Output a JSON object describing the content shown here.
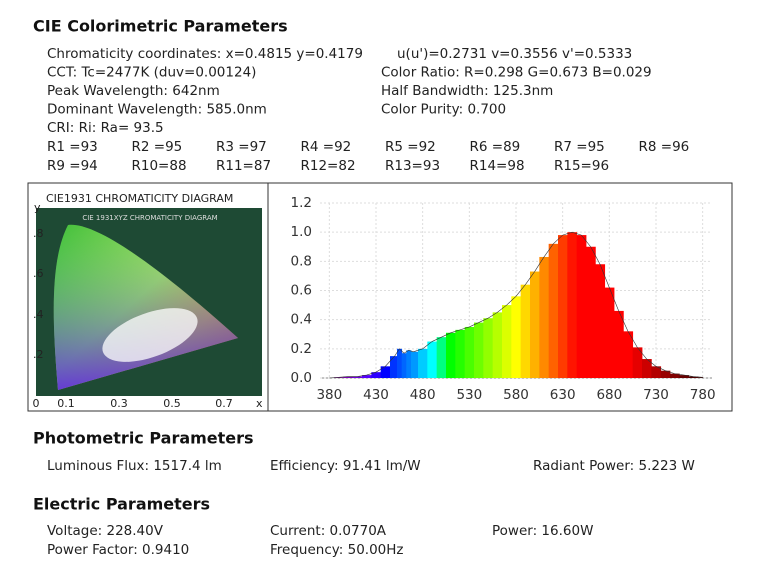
{
  "colorimetric": {
    "title": "CIE Colorimetric Parameters",
    "rows": [
      [
        "Chromaticity coordinates: x=0.4815 y=0.4179",
        "u(u')=0.2731 v=0.3556 v'=0.5333"
      ],
      [
        "CCT: Tc=2477K (duv=0.00124)",
        "Color Ratio: R=0.298  G=0.673  B=0.029"
      ],
      [
        "Peak Wavelength: 642nm",
        "Half Bandwidth: 125.3nm"
      ],
      [
        "Dominant Wavelength: 585.0nm",
        "Color Purity: 0.700"
      ],
      [
        "CRI: Ri: Ra= 93.5"
      ]
    ],
    "cri": [
      [
        "R1 =93",
        "R2 =95",
        "R3 =97",
        "R4 =92",
        "R5 =92",
        "R6 =89",
        "R7 =95",
        "R8 =96"
      ],
      [
        "R9 =94",
        "R10=88",
        "R11=87",
        "R12=82",
        "R13=93",
        "R14=98",
        "R15=96"
      ]
    ]
  },
  "cie_diagram": {
    "title": "CIE1931 CHROMATICITY DIAGRAM",
    "inner_title": "CIE 1931XYZ CHROMATICITY DIAGRAM",
    "y_label": "y",
    "x_label": "x",
    "y_ticks": [
      ".8",
      ".6",
      ".4",
      ".2"
    ],
    "x_ticks": [
      "0",
      "0.1",
      "0.3",
      "0.5",
      "0.7"
    ]
  },
  "chart_data": {
    "type": "area",
    "x": [
      380,
      390,
      400,
      410,
      420,
      430,
      440,
      450,
      455,
      460,
      465,
      470,
      480,
      490,
      500,
      510,
      520,
      530,
      540,
      550,
      560,
      570,
      580,
      590,
      600,
      610,
      620,
      630,
      640,
      650,
      660,
      670,
      680,
      690,
      700,
      710,
      720,
      730,
      740,
      750,
      760,
      770,
      780
    ],
    "values": [
      0,
      0.005,
      0.01,
      0.01,
      0.02,
      0.04,
      0.08,
      0.15,
      0.2,
      0.17,
      0.19,
      0.18,
      0.2,
      0.25,
      0.28,
      0.31,
      0.33,
      0.35,
      0.38,
      0.41,
      0.45,
      0.5,
      0.56,
      0.64,
      0.73,
      0.83,
      0.92,
      0.98,
      1.0,
      0.98,
      0.9,
      0.78,
      0.62,
      0.46,
      0.32,
      0.21,
      0.13,
      0.08,
      0.05,
      0.03,
      0.02,
      0.01,
      0.005
    ],
    "xlim": [
      370,
      790
    ],
    "xticks": [
      380,
      430,
      480,
      530,
      580,
      630,
      680,
      730,
      780
    ],
    "ylim": [
      0,
      1.2
    ],
    "yticks": [
      {
        "value": 0,
        "label": "0.0"
      },
      0.2,
      0.4,
      0.6,
      0.8,
      {
        "value": 1,
        "label": "1.0"
      },
      1.2
    ],
    "grid": true
  },
  "photometric": {
    "title": "Photometric Parameters",
    "items": [
      "Luminous Flux: 1517.4 lm",
      "Efficiency: 91.41 lm/W",
      "Radiant Power: 5.223 W"
    ]
  },
  "electric": {
    "title": "Electric Parameters",
    "rows": [
      [
        "Voltage: 228.40V",
        "Current: 0.0770A",
        "Power: 16.60W"
      ],
      [
        "Power Factor: 0.9410",
        "Frequency: 50.00Hz"
      ]
    ]
  }
}
